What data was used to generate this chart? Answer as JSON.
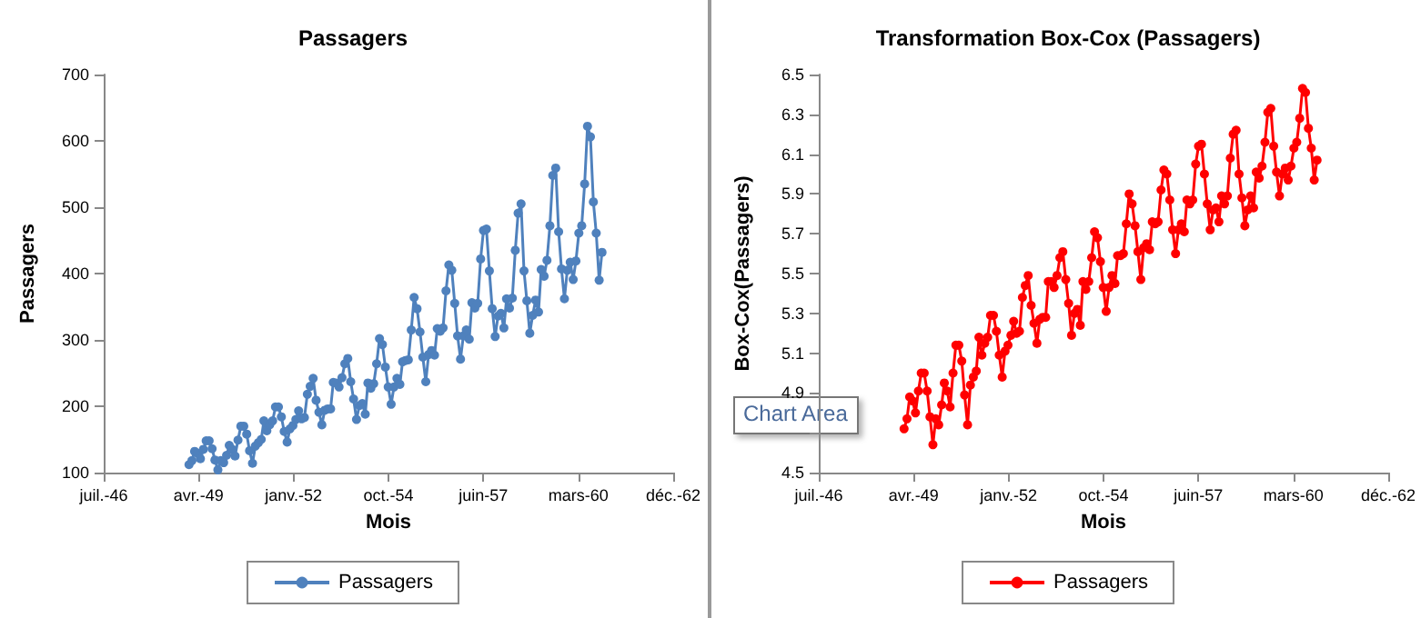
{
  "chart_data": [
    {
      "type": "line",
      "title": "Passagers",
      "xlabel": "Mois",
      "ylabel": "Passagers",
      "legend": "bottom",
      "marker": "circle",
      "grid": false,
      "xlim": [
        "1946-07-17",
        "1962-12-21"
      ],
      "xticks": [
        {
          "value": "1946-07-17",
          "label": "juil.-46"
        },
        {
          "value": "1949-04-12",
          "label": "avr.-49"
        },
        {
          "value": "1952-01-07",
          "label": "janv.-52"
        },
        {
          "value": "1954-10-04",
          "label": "oct.-54"
        },
        {
          "value": "1957-06-30",
          "label": "juin-57"
        },
        {
          "value": "1960-03-26",
          "label": "mars-60"
        },
        {
          "value": "1962-12-21",
          "label": "déc.-62"
        }
      ],
      "ylim": [
        100,
        700
      ],
      "yticks": [
        100,
        200,
        300,
        400,
        500,
        600,
        700
      ],
      "x": [
        "1949-01",
        "1949-02",
        "1949-03",
        "1949-04",
        "1949-05",
        "1949-06",
        "1949-07",
        "1949-08",
        "1949-09",
        "1949-10",
        "1949-11",
        "1949-12",
        "1950-01",
        "1950-02",
        "1950-03",
        "1950-04",
        "1950-05",
        "1950-06",
        "1950-07",
        "1950-08",
        "1950-09",
        "1950-10",
        "1950-11",
        "1950-12",
        "1951-01",
        "1951-02",
        "1951-03",
        "1951-04",
        "1951-05",
        "1951-06",
        "1951-07",
        "1951-08",
        "1951-09",
        "1951-10",
        "1951-11",
        "1951-12",
        "1952-01",
        "1952-02",
        "1952-03",
        "1952-04",
        "1952-05",
        "1952-06",
        "1952-07",
        "1952-08",
        "1952-09",
        "1952-10",
        "1952-11",
        "1952-12",
        "1953-01",
        "1953-02",
        "1953-03",
        "1953-04",
        "1953-05",
        "1953-06",
        "1953-07",
        "1953-08",
        "1953-09",
        "1953-10",
        "1953-11",
        "1953-12",
        "1954-01",
        "1954-02",
        "1954-03",
        "1954-04",
        "1954-05",
        "1954-06",
        "1954-07",
        "1954-08",
        "1954-09",
        "1954-10",
        "1954-11",
        "1954-12",
        "1955-01",
        "1955-02",
        "1955-03",
        "1955-04",
        "1955-05",
        "1955-06",
        "1955-07",
        "1955-08",
        "1955-09",
        "1955-10",
        "1955-11",
        "1955-12",
        "1956-01",
        "1956-02",
        "1956-03",
        "1956-04",
        "1956-05",
        "1956-06",
        "1956-07",
        "1956-08",
        "1956-09",
        "1956-10",
        "1956-11",
        "1956-12",
        "1957-01",
        "1957-02",
        "1957-03",
        "1957-04",
        "1957-05",
        "1957-06",
        "1957-07",
        "1957-08",
        "1957-09",
        "1957-10",
        "1957-11",
        "1957-12",
        "1958-01",
        "1958-02",
        "1958-03",
        "1958-04",
        "1958-05",
        "1958-06",
        "1958-07",
        "1958-08",
        "1958-09",
        "1958-10",
        "1958-11",
        "1958-12",
        "1959-01",
        "1959-02",
        "1959-03",
        "1959-04",
        "1959-05",
        "1959-06",
        "1959-07",
        "1959-08",
        "1959-09",
        "1959-10",
        "1959-11",
        "1959-12",
        "1960-01",
        "1960-02",
        "1960-03",
        "1960-04",
        "1960-05",
        "1960-06",
        "1960-07",
        "1960-08",
        "1960-09",
        "1960-10",
        "1960-11",
        "1960-12"
      ],
      "series": [
        {
          "name": "Passagers",
          "color": "#4f81bd",
          "values": [
            112,
            118,
            132,
            129,
            121,
            135,
            148,
            148,
            136,
            119,
            104,
            118,
            115,
            126,
            141,
            135,
            125,
            149,
            170,
            170,
            158,
            133,
            114,
            140,
            145,
            150,
            178,
            163,
            172,
            178,
            199,
            199,
            184,
            162,
            146,
            166,
            171,
            180,
            193,
            181,
            183,
            218,
            230,
            242,
            209,
            191,
            172,
            194,
            196,
            196,
            236,
            235,
            229,
            243,
            264,
            272,
            237,
            211,
            180,
            201,
            204,
            188,
            235,
            227,
            234,
            264,
            302,
            293,
            259,
            229,
            203,
            229,
            242,
            233,
            267,
            269,
            270,
            315,
            364,
            347,
            312,
            274,
            237,
            278,
            284,
            277,
            317,
            313,
            318,
            374,
            413,
            405,
            355,
            306,
            271,
            306,
            315,
            301,
            356,
            348,
            355,
            422,
            465,
            467,
            404,
            347,
            305,
            336,
            340,
            318,
            362,
            348,
            363,
            435,
            491,
            505,
            404,
            359,
            310,
            337,
            360,
            342,
            406,
            396,
            420,
            472,
            548,
            559,
            463,
            407,
            362,
            405,
            417,
            391,
            419,
            461,
            472,
            535,
            622,
            606,
            508,
            461,
            390,
            432
          ]
        }
      ]
    },
    {
      "type": "line",
      "title": "Transformation Box-Cox (Passagers)",
      "xlabel": "Mois",
      "ylabel": "Box-Cox(Passagers)",
      "legend": "bottom",
      "marker": "circle",
      "grid": false,
      "annotations": [
        "Chart Area"
      ],
      "xlim": [
        "1946-07-17",
        "1962-12-21"
      ],
      "xticks": [
        {
          "value": "1946-07-17",
          "label": "juil.-46"
        },
        {
          "value": "1949-04-12",
          "label": "avr.-49"
        },
        {
          "value": "1952-01-07",
          "label": "janv.-52"
        },
        {
          "value": "1954-10-04",
          "label": "oct.-54"
        },
        {
          "value": "1957-06-30",
          "label": "juin-57"
        },
        {
          "value": "1960-03-26",
          "label": "mars-60"
        },
        {
          "value": "1962-12-21",
          "label": "déc.-62"
        }
      ],
      "ylim": [
        4.5,
        6.5
      ],
      "yticks": [
        4.5,
        {
          "value": 4.7,
          "label": null
        },
        4.9,
        5.1,
        5.3,
        5.5,
        5.7,
        5.9,
        6.1,
        6.3,
        6.5
      ],
      "x": [
        "1949-01",
        "1949-02",
        "1949-03",
        "1949-04",
        "1949-05",
        "1949-06",
        "1949-07",
        "1949-08",
        "1949-09",
        "1949-10",
        "1949-11",
        "1949-12",
        "1950-01",
        "1950-02",
        "1950-03",
        "1950-04",
        "1950-05",
        "1950-06",
        "1950-07",
        "1950-08",
        "1950-09",
        "1950-10",
        "1950-11",
        "1950-12",
        "1951-01",
        "1951-02",
        "1951-03",
        "1951-04",
        "1951-05",
        "1951-06",
        "1951-07",
        "1951-08",
        "1951-09",
        "1951-10",
        "1951-11",
        "1951-12",
        "1952-01",
        "1952-02",
        "1952-03",
        "1952-04",
        "1952-05",
        "1952-06",
        "1952-07",
        "1952-08",
        "1952-09",
        "1952-10",
        "1952-11",
        "1952-12",
        "1953-01",
        "1953-02",
        "1953-03",
        "1953-04",
        "1953-05",
        "1953-06",
        "1953-07",
        "1953-08",
        "1953-09",
        "1953-10",
        "1953-11",
        "1953-12",
        "1954-01",
        "1954-02",
        "1954-03",
        "1954-04",
        "1954-05",
        "1954-06",
        "1954-07",
        "1954-08",
        "1954-09",
        "1954-10",
        "1954-11",
        "1954-12",
        "1955-01",
        "1955-02",
        "1955-03",
        "1955-04",
        "1955-05",
        "1955-06",
        "1955-07",
        "1955-08",
        "1955-09",
        "1955-10",
        "1955-11",
        "1955-12",
        "1956-01",
        "1956-02",
        "1956-03",
        "1956-04",
        "1956-05",
        "1956-06",
        "1956-07",
        "1956-08",
        "1956-09",
        "1956-10",
        "1956-11",
        "1956-12",
        "1957-01",
        "1957-02",
        "1957-03",
        "1957-04",
        "1957-05",
        "1957-06",
        "1957-07",
        "1957-08",
        "1957-09",
        "1957-10",
        "1957-11",
        "1957-12",
        "1958-01",
        "1958-02",
        "1958-03",
        "1958-04",
        "1958-05",
        "1958-06",
        "1958-07",
        "1958-08",
        "1958-09",
        "1958-10",
        "1958-11",
        "1958-12",
        "1959-01",
        "1959-02",
        "1959-03",
        "1959-04",
        "1959-05",
        "1959-06",
        "1959-07",
        "1959-08",
        "1959-09",
        "1959-10",
        "1959-11",
        "1959-12",
        "1960-01",
        "1960-02",
        "1960-03",
        "1960-04",
        "1960-05",
        "1960-06",
        "1960-07",
        "1960-08",
        "1960-09",
        "1960-10",
        "1960-11",
        "1960-12"
      ],
      "series": [
        {
          "name": "Passagers",
          "color": "#ff0000",
          "values": [
            4.72,
            4.77,
            4.88,
            4.86,
            4.8,
            4.91,
            5.0,
            5.0,
            4.91,
            4.78,
            4.64,
            4.77,
            4.74,
            4.84,
            4.95,
            4.91,
            4.83,
            5.0,
            5.14,
            5.14,
            5.06,
            4.89,
            4.74,
            4.94,
            4.98,
            5.01,
            5.18,
            5.09,
            5.15,
            5.18,
            5.29,
            5.29,
            5.21,
            5.09,
            4.98,
            5.11,
            5.14,
            5.19,
            5.26,
            5.2,
            5.21,
            5.38,
            5.44,
            5.49,
            5.34,
            5.25,
            5.15,
            5.27,
            5.28,
            5.28,
            5.46,
            5.46,
            5.43,
            5.49,
            5.58,
            5.61,
            5.47,
            5.35,
            5.19,
            5.3,
            5.32,
            5.24,
            5.46,
            5.42,
            5.46,
            5.58,
            5.71,
            5.68,
            5.56,
            5.43,
            5.31,
            5.43,
            5.49,
            5.45,
            5.59,
            5.59,
            5.6,
            5.75,
            5.9,
            5.85,
            5.74,
            5.61,
            5.47,
            5.63,
            5.65,
            5.62,
            5.76,
            5.75,
            5.76,
            5.92,
            6.02,
            6.0,
            5.87,
            5.72,
            5.6,
            5.72,
            5.75,
            5.71,
            5.87,
            5.85,
            5.87,
            6.05,
            6.14,
            6.15,
            6.0,
            5.85,
            5.72,
            5.82,
            5.83,
            5.76,
            5.89,
            5.85,
            5.89,
            6.08,
            6.2,
            6.22,
            6.0,
            5.88,
            5.74,
            5.82,
            5.89,
            5.83,
            6.01,
            5.98,
            6.04,
            6.16,
            6.31,
            6.33,
            6.14,
            6.01,
            5.89,
            6.0,
            6.03,
            5.97,
            6.04,
            6.13,
            6.16,
            6.28,
            6.43,
            6.41,
            6.23,
            6.13,
            5.97,
            6.07
          ]
        }
      ]
    }
  ]
}
